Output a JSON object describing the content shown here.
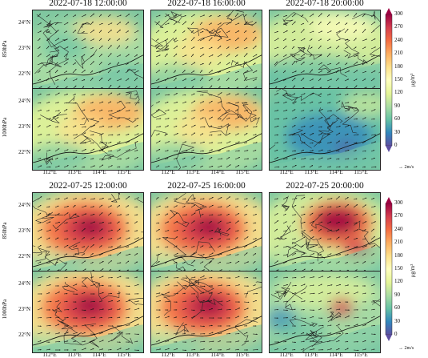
{
  "groups": [
    {
      "id": "g1",
      "titles": [
        "2022-07-18 12:00:00",
        "2022-07-18 16:00:00",
        "2022-07-18 20:00:00"
      ],
      "rows": [
        {
          "level": "850hPa",
          "panels": [
            "low-mixed",
            "mid-mixed",
            "low-coast"
          ]
        },
        {
          "level": "1000hPa",
          "panels": [
            "mid-mixed",
            "mid-mixed",
            "blue-low"
          ]
        }
      ],
      "colorbar": {
        "ticks": [
          "0",
          "30",
          "60",
          "90",
          "120",
          "150",
          "180",
          "210",
          "240",
          "270",
          "300"
        ],
        "unit": "μg/m³"
      },
      "wind_ref": "2m/s"
    },
    {
      "id": "g2",
      "titles": [
        "2022-07-25 12:00:00",
        "2022-07-25 16:00:00",
        "2022-07-25 20:00:00"
      ],
      "rows": [
        {
          "level": "850hPa",
          "panels": [
            "high",
            "high",
            "high-east"
          ]
        },
        {
          "level": "1000hPa",
          "panels": [
            "high",
            "high",
            "blue-mixed"
          ]
        }
      ],
      "colorbar": {
        "ticks": [
          "0",
          "30",
          "60",
          "90",
          "120",
          "150",
          "180",
          "210",
          "240",
          "270",
          "300"
        ],
        "unit": "μg/m³"
      },
      "wind_ref": "2m/s"
    }
  ],
  "lat_labels": [
    "24°N",
    "23°N",
    "22°N"
  ],
  "lon_labels": [
    "112°E",
    "113°E",
    "114°E",
    "115°E"
  ],
  "colormap": [
    "#5e4fa2",
    "#3288bd",
    "#66c2a5",
    "#abdda4",
    "#e6f598",
    "#ffffbf",
    "#fee08b",
    "#fdae61",
    "#f46d43",
    "#d53e4f",
    "#9e0142"
  ],
  "map_background": "#7fc7a0",
  "sea_color": "#79c8a8"
}
